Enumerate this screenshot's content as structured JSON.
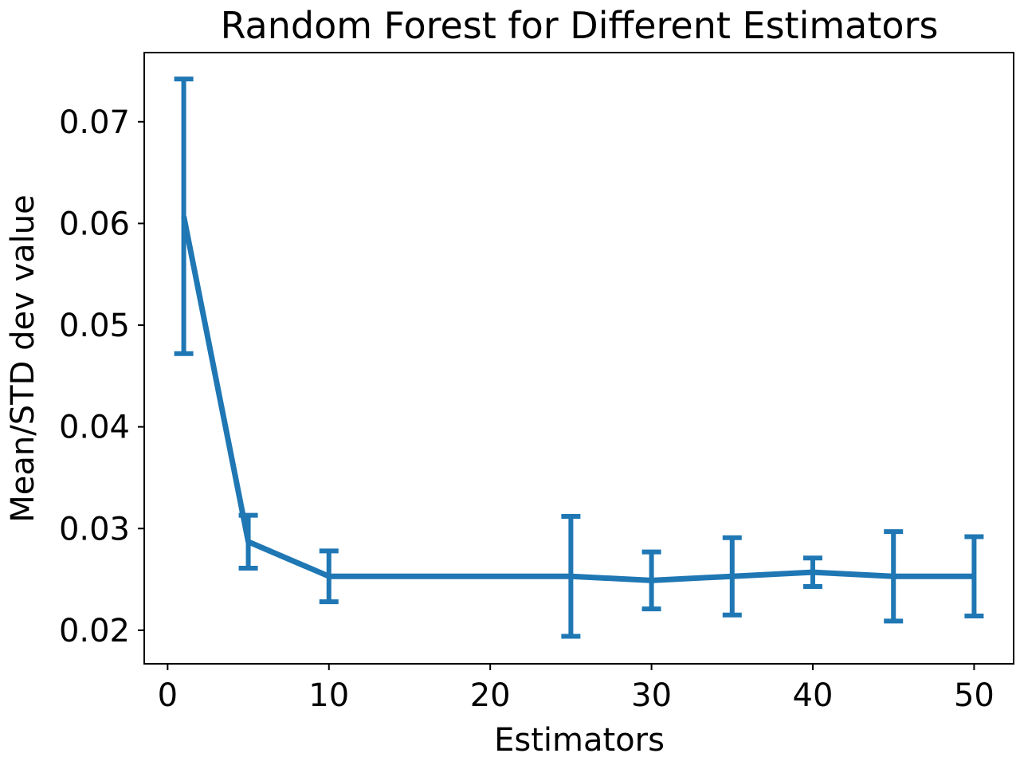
{
  "chart_data": {
    "type": "line",
    "title": "Random Forest for Different Estimators",
    "xlabel": "Estimators",
    "ylabel": "Mean/STD dev value",
    "xlim": [
      -1.45,
      52.45
    ],
    "ylim": [
      0.0167,
      0.0768
    ],
    "xticks": [
      0,
      10,
      20,
      30,
      40,
      50
    ],
    "xtick_labels": [
      "0",
      "10",
      "20",
      "30",
      "40",
      "50"
    ],
    "yticks": [
      0.02,
      0.03,
      0.04,
      0.05,
      0.06,
      0.07
    ],
    "ytick_labels": [
      "0.02",
      "0.03",
      "0.04",
      "0.05",
      "0.06",
      "0.07"
    ],
    "grid": false,
    "series": [
      {
        "color": "#1f77b4",
        "x": [
          1,
          5,
          10,
          25,
          30,
          35,
          40,
          45,
          50
        ],
        "y": [
          0.0607,
          0.0287,
          0.0253,
          0.0253,
          0.0249,
          0.0253,
          0.0257,
          0.0253,
          0.0253
        ],
        "yerr": [
          0.0135,
          0.0026,
          0.0025,
          0.0059,
          0.0028,
          0.0038,
          0.0014,
          0.0044,
          0.0039
        ]
      }
    ]
  }
}
